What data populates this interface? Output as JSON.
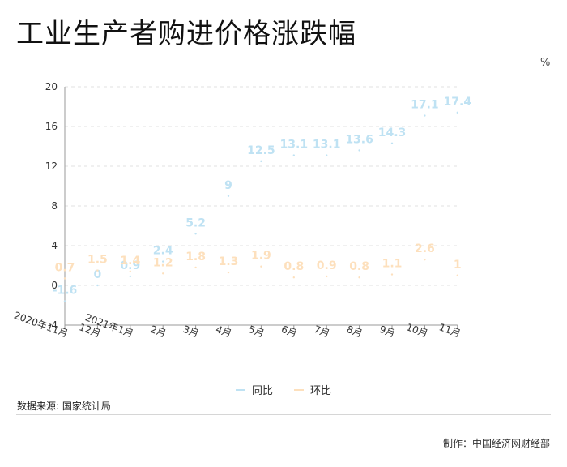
{
  "page": {
    "title": "工业生产者购进价格涨跌幅",
    "unit": "%",
    "source": "数据来源: 国家统计局",
    "credit": "制作：中国经济网财经部"
  },
  "colors": {
    "yoy": "#bfe2f3",
    "mom": "#fde0bd"
  },
  "chart_data": {
    "type": "line",
    "title": "工业生产者购进价格涨跌幅",
    "ylabel": "%",
    "categories": [
      "2020年11月",
      "12月",
      "2021年1月",
      "2月",
      "3月",
      "4月",
      "5月",
      "6月",
      "7月",
      "8月",
      "9月",
      "10月",
      "11月"
    ],
    "series": [
      {
        "name": "同比",
        "values": [
          -1.6,
          0,
          0.9,
          2.4,
          5.2,
          9,
          12.5,
          13.1,
          13.1,
          13.6,
          14.3,
          17.1,
          17.4
        ]
      },
      {
        "name": "环比",
        "values": [
          0.7,
          1.5,
          1.4,
          1.2,
          1.8,
          1.3,
          1.9,
          0.8,
          0.9,
          0.8,
          1.1,
          2.6,
          1
        ]
      }
    ],
    "yticks": [
      -4,
      0,
      4,
      8,
      12,
      16,
      20
    ],
    "ylim": [
      -4,
      20
    ],
    "grid": true,
    "legend_position": "bottom"
  }
}
